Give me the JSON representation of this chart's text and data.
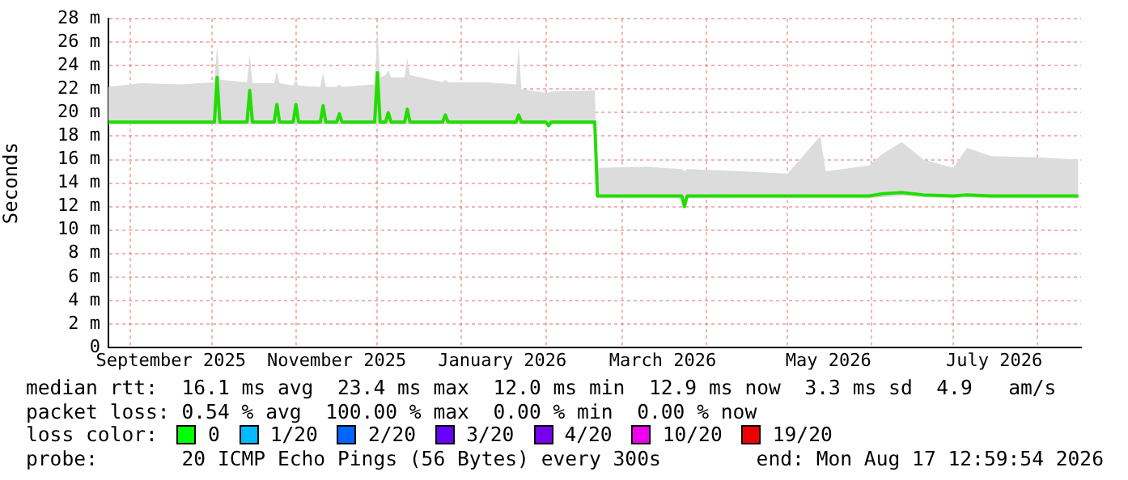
{
  "chart_data": {
    "type": "line",
    "ylabel": "Seconds",
    "x": [
      "2025-08-24",
      "2025-09-05",
      "2025-09-20",
      "2025-10-02",
      "2025-10-03",
      "2025-10-04",
      "2025-10-14",
      "2025-10-15",
      "2025-10-16",
      "2025-10-24",
      "2025-10-25",
      "2025-10-26",
      "2025-10-31",
      "2025-11-01",
      "2025-11-02",
      "2025-11-10",
      "2025-11-11",
      "2025-11-12",
      "2025-11-16",
      "2025-11-17",
      "2025-11-18",
      "2025-11-30",
      "2025-12-01",
      "2025-12-02",
      "2025-12-04",
      "2025-12-05",
      "2025-12-06",
      "2025-12-11",
      "2025-12-12",
      "2025-12-13",
      "2025-12-25",
      "2025-12-26",
      "2025-12-27",
      "2026-01-10",
      "2026-01-21",
      "2026-01-22",
      "2026-01-23",
      "2026-02-01",
      "2026-02-02",
      "2026-02-03",
      "2026-02-19",
      "2026-02-20",
      "2026-03-10",
      "2026-03-23",
      "2026-03-24",
      "2026-03-25",
      "2026-04-15",
      "2026-05-01",
      "2026-05-13",
      "2026-05-15",
      "2026-05-31",
      "2026-06-05",
      "2026-06-12",
      "2026-06-20",
      "2026-07-01",
      "2026-07-06",
      "2026-07-15",
      "2026-08-01",
      "2026-08-16"
    ],
    "series": [
      {
        "color": "#22dd00",
        "values": [
          19.2,
          19.2,
          19.2,
          19.2,
          23.0,
          19.2,
          19.2,
          21.9,
          19.2,
          19.2,
          20.7,
          19.2,
          19.2,
          20.7,
          19.2,
          19.2,
          20.6,
          19.2,
          19.2,
          19.9,
          19.2,
          19.2,
          23.4,
          19.2,
          19.2,
          20.0,
          19.2,
          19.2,
          20.3,
          19.2,
          19.2,
          19.8,
          19.2,
          19.2,
          19.2,
          19.8,
          19.2,
          19.2,
          18.9,
          19.2,
          19.2,
          12.9,
          12.9,
          12.9,
          12.0,
          12.9,
          12.9,
          12.9,
          12.9,
          12.9,
          12.9,
          13.1,
          13.2,
          13.0,
          12.9,
          13.0,
          12.9,
          12.9,
          12.9
        ],
        "lower": [
          19.0,
          19.0,
          19.0,
          19.0,
          19.0,
          19.0,
          19.0,
          19.0,
          19.0,
          19.0,
          19.0,
          19.0,
          19.0,
          19.0,
          19.0,
          19.0,
          19.0,
          19.0,
          19.0,
          19.0,
          19.0,
          19.0,
          19.0,
          19.0,
          19.0,
          19.0,
          19.0,
          19.0,
          19.0,
          19.0,
          19.0,
          19.0,
          19.0,
          19.0,
          19.0,
          19.0,
          19.0,
          19.0,
          18.8,
          19.0,
          19.0,
          12.7,
          12.7,
          12.7,
          12.0,
          12.7,
          12.7,
          12.7,
          12.7,
          12.7,
          12.7,
          12.8,
          12.9,
          12.8,
          12.7,
          12.8,
          12.7,
          12.7,
          12.7
        ],
        "upper": [
          22.2,
          22.5,
          22.4,
          22.6,
          25.7,
          22.8,
          22.6,
          25.0,
          22.5,
          22.5,
          23.5,
          22.5,
          22.3,
          22.8,
          22.3,
          22.2,
          23.4,
          22.2,
          22.2,
          22.4,
          22.2,
          22.4,
          27.0,
          23.0,
          23.2,
          23.6,
          23.0,
          23.0,
          24.6,
          23.2,
          22.6,
          22.8,
          22.6,
          22.6,
          22.4,
          25.7,
          22.0,
          21.7,
          21.7,
          21.8,
          21.9,
          15.3,
          15.4,
          15.2,
          15.0,
          15.2,
          15.0,
          14.8,
          18.0,
          15.0,
          15.5,
          16.5,
          17.5,
          16.0,
          15.3,
          17.0,
          16.3,
          16.2,
          16.0
        ]
      }
    ],
    "xlim": [
      "2025-08-24",
      "2026-08-17"
    ],
    "xticks": [
      {
        "value": "2025-09-01",
        "label": null
      },
      {
        "value": "2025-09-16",
        "label": "September 2025"
      },
      {
        "value": "2025-10-01",
        "label": null
      },
      {
        "value": "2025-11-01",
        "label": null
      },
      {
        "value": "2025-11-16",
        "label": "November 2025"
      },
      {
        "value": "2025-12-01",
        "label": null
      },
      {
        "value": "2026-01-01",
        "label": null
      },
      {
        "value": "2026-01-16",
        "label": "January 2026"
      },
      {
        "value": "2026-02-01",
        "label": null
      },
      {
        "value": "2026-03-01",
        "label": null
      },
      {
        "value": "2026-03-16",
        "label": "March 2026"
      },
      {
        "value": "2026-04-01",
        "label": null
      },
      {
        "value": "2026-05-01",
        "label": null
      },
      {
        "value": "2026-05-16",
        "label": "May 2026"
      },
      {
        "value": "2026-06-01",
        "label": null
      },
      {
        "value": "2026-07-01",
        "label": null
      },
      {
        "value": "2026-07-16",
        "label": "July 2026"
      },
      {
        "value": "2026-08-01",
        "label": null
      }
    ],
    "ylim": [
      0,
      28
    ],
    "yticks": [
      0,
      {
        "value": 2,
        "label": "2 m"
      },
      {
        "value": 4,
        "label": "4 m"
      },
      {
        "value": 6,
        "label": "6 m"
      },
      {
        "value": 8,
        "label": "8 m"
      },
      {
        "value": 10,
        "label": "10 m"
      },
      {
        "value": 12,
        "label": "12 m"
      },
      {
        "value": 14,
        "label": "14 m"
      },
      {
        "value": 16,
        "label": "16 m"
      },
      {
        "value": 18,
        "label": "18 m"
      },
      {
        "value": 20,
        "label": "20 m"
      },
      {
        "value": 22,
        "label": "22 m"
      },
      {
        "value": 24,
        "label": "24 m"
      },
      {
        "value": 26,
        "label": "26 m"
      },
      {
        "value": 28,
        "label": "28 m"
      }
    ],
    "grid": true,
    "legend": false,
    "marker": "none",
    "line_style": "solid",
    "annotations": [
      "median rtt:  16.1 ms avg  23.4 ms max  12.0 ms min  12.9 ms now  3.3 ms sd  4.9   am/s",
      "packet loss: 0.54 % avg  100.00 % max  0.00 % min  0.00 % now",
      "loss color:",
      "0",
      "1/20",
      "2/20",
      "3/20",
      "4/20",
      "10/20",
      "19/20",
      "probe:       20 ICMP Echo Pings (56 Bytes) every 300s",
      "end: Mon Aug 17 12:59:54 2026"
    ]
  }
}
